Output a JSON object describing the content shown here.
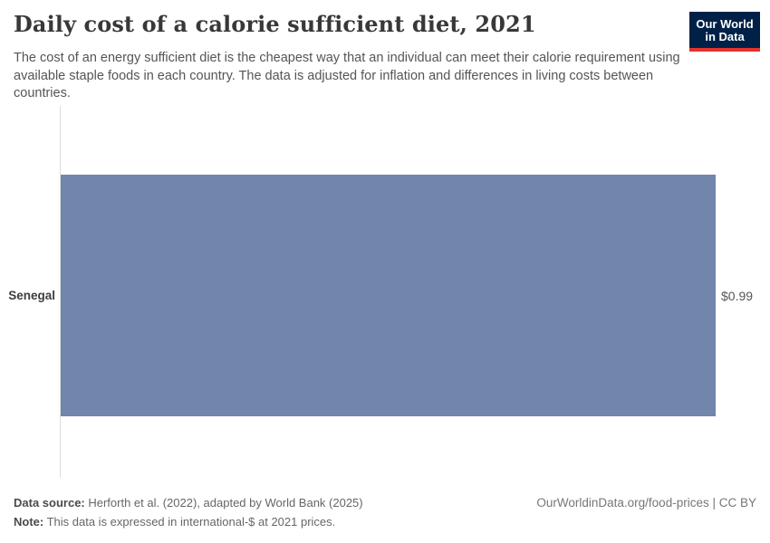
{
  "header": {
    "title": "Daily cost of a calorie sufficient diet, 2021",
    "subtitle": "The cost of an energy sufficient diet is the cheapest way that an individual can meet their calorie requirement using available staple foods in each country. The data is adjusted for inflation and differences in living costs between countries.",
    "logo": {
      "line1": "Our World",
      "line2": "in Data",
      "background_color": "#002147",
      "accent_color": "#e5332e"
    }
  },
  "chart_data": {
    "type": "bar",
    "orientation": "horizontal",
    "title": "Daily cost of a calorie sufficient diet, 2021",
    "categories": [
      "Senegal"
    ],
    "values": [
      0.99
    ],
    "value_labels": [
      "$0.99"
    ],
    "unit": "international-$ at 2021 prices",
    "xlim": [
      0,
      0.99
    ],
    "grid": false,
    "legend": "none",
    "bar_color": "#7185ad",
    "axis_color": "#dedede"
  },
  "footer": {
    "data_source_label": "Data source:",
    "data_source_text": " Herforth et al. (2022), adapted by World Bank (2025)",
    "note_label": "Note:",
    "note_text": " This data is expressed in international-$ at 2021 prices.",
    "origin_url": "OurWorldinData.org/food-prices",
    "separator": " | ",
    "license": "CC BY"
  }
}
